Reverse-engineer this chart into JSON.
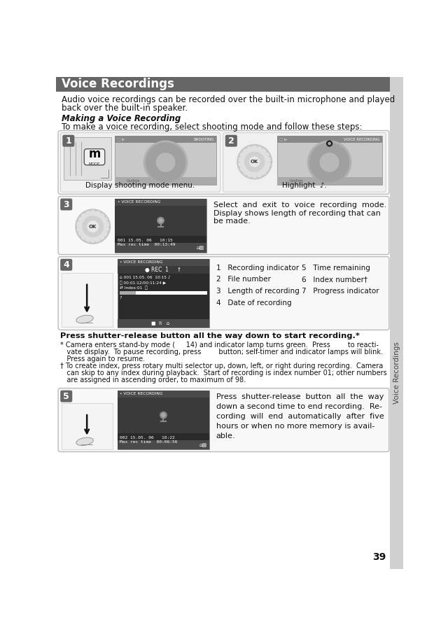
{
  "page_number": "39",
  "header_text": "Voice Recordings",
  "header_bg": "#666666",
  "header_text_color": "#ffffff",
  "bg_color": "#ffffff",
  "body_intro_line1": "Audio voice recordings can be recorded over the built-in microphone and played",
  "body_intro_line2": "back over the built-in speaker.",
  "section_title": "Making a Voice Recording",
  "section_intro": "To make a voice recording, select shooting mode and follow these steps:",
  "step1_caption": "Display shooting mode menu.",
  "step2_caption": "Highlight",
  "step3_text_line1": "Select  and  exit  to  voice  recording  mode.",
  "step3_text_line2": "Display shows length of recording that can",
  "step3_text_line3": "be made.",
  "step3_screen_line1": "001 15.05. 06   10:15",
  "step3_screen_line2": "Max rec time  00:13:49",
  "step4_items_left": [
    "1   Recording indicator",
    "2   File number",
    "3   Length of recording",
    "4   Date of recording"
  ],
  "step4_items_right": [
    "5   Time remaining",
    "6   Index number†",
    "7   Progress indicator"
  ],
  "step4_screen_line1": "001 15.05. 06  10:15",
  "step4_screen_line2": "00:01:12/00:11:24",
  "step4_screen_line3": "Index:01",
  "step4_caption": "Press shutter-release button all the way down to start recording.*",
  "footnote1_line1": "* Camera enters stand-by mode (     14) and indicator lamp turns green.  Press        to reacti-",
  "footnote1_line2": "   vate display.  To pause recording, press        button; self-timer and indicator lamps will blink.",
  "footnote1_line3": "   Press again to resume.",
  "footnote2_line1": "† To create index, press rotary multi selector up, down, left, or right during recording.  Camera",
  "footnote2_line2": "   can skip to any index during playback.  Start of recording is index number 01; other numbers",
  "footnote2_line3": "   are assigned in ascending order, to maximum of 98.",
  "step5_text_line1": "Press  shutter-release  button  all  the  way",
  "step5_text_line2": "down a second time to end recording.  Re-",
  "step5_text_line3": "cording  will  end  automatically  after  five",
  "step5_text_line4": "hours or when no more memory is avail-",
  "step5_text_line5": "able.",
  "step5_screen_line1": "002 15.05. 06   10:22",
  "step5_screen_line2": "Max rec time  00:06:56",
  "sidebar_text": "Voice Recordings",
  "sidebar_bg": "#d0d0d0",
  "step_bg": "#666666",
  "screen_dark": "#2a2a2a",
  "screen_mid": "#4a4a4a",
  "screen_light": "#888888",
  "border_color": "#bbbbbb",
  "box_bg": "#f2f2f2"
}
